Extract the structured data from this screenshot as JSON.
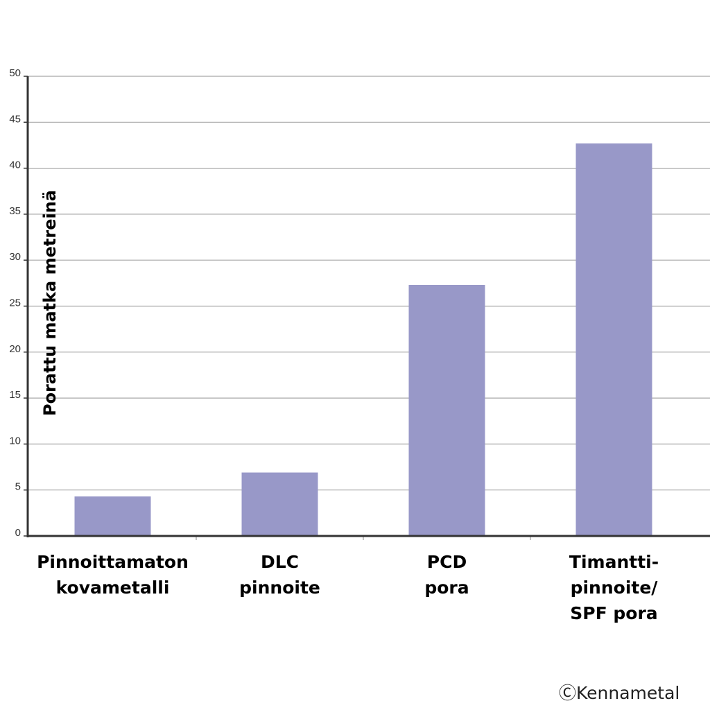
{
  "chart_data": {
    "type": "bar",
    "categories": [
      "Pinnoittamaton\nkovametalli",
      "DLC\npinnoite",
      "PCD\npora",
      "Timantti-\npinnoite/\nSPF pora"
    ],
    "values": [
      4.3,
      6.9,
      27.3,
      42.7
    ],
    "ylabel": "Porattu matka metreinä",
    "ylim": [
      0,
      50
    ],
    "yticks": [
      0,
      5,
      10,
      15,
      20,
      25,
      30,
      35,
      40,
      45,
      50
    ],
    "grid": true,
    "bar_color": "#9898c8",
    "grid_color": "#a8a8a8",
    "axis_color": "#333333"
  },
  "footer": {
    "copyright": "ⒸKennametal"
  }
}
